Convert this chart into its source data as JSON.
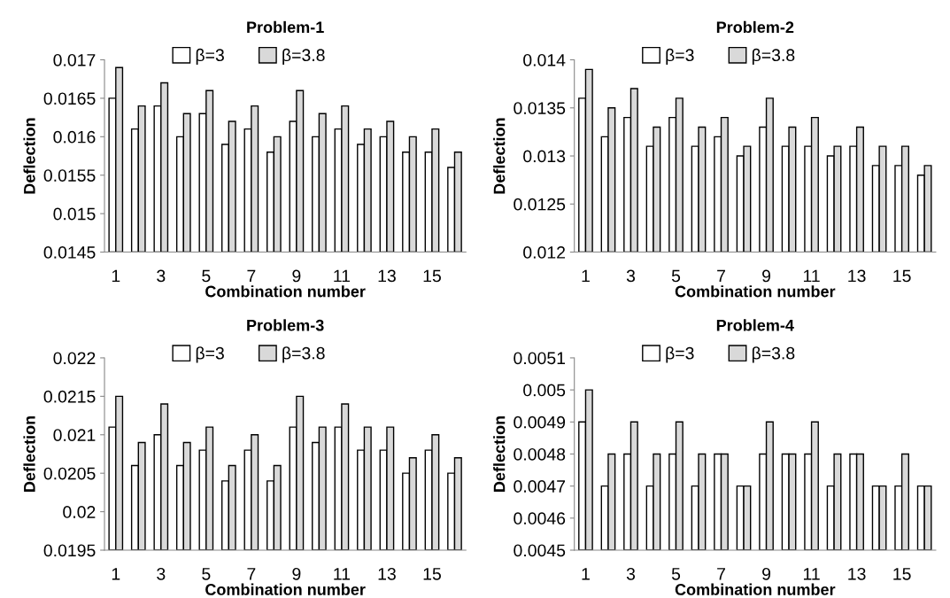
{
  "chart_data": [
    {
      "type": "bar",
      "title": "Problem-1",
      "xlabel": "Combination number",
      "ylabel": "Deflection",
      "categories": [
        "1",
        null,
        "3",
        null,
        "5",
        null,
        "7",
        null,
        "9",
        null,
        "11",
        null,
        "13",
        null,
        "15",
        null
      ],
      "ylim": [
        0.0145,
        0.017
      ],
      "yticks": [
        0.0145,
        0.015,
        0.0155,
        0.016,
        0.0165,
        0.017
      ],
      "legend": "top",
      "grid": false,
      "series": [
        {
          "name": "β=3",
          "color": "#ffffff",
          "values": [
            0.0165,
            0.0161,
            0.0164,
            0.016,
            0.0163,
            0.0159,
            0.0161,
            0.0158,
            0.0162,
            0.016,
            0.0161,
            0.0159,
            0.016,
            0.0158,
            0.0158,
            0.0156
          ]
        },
        {
          "name": "β=3.8",
          "color": "#d9d9d9",
          "values": [
            0.0169,
            0.0164,
            0.0167,
            0.0163,
            0.0166,
            0.0162,
            0.0164,
            0.016,
            0.0166,
            0.0163,
            0.0164,
            0.0161,
            0.0162,
            0.016,
            0.0161,
            0.0158
          ]
        }
      ]
    },
    {
      "type": "bar",
      "title": "Problem-2",
      "xlabel": "Combination number",
      "ylabel": "Deflection",
      "categories": [
        "1",
        null,
        "3",
        null,
        "5",
        null,
        "7",
        null,
        "9",
        null,
        "11",
        null,
        "13",
        null,
        "15",
        null
      ],
      "ylim": [
        0.012,
        0.014
      ],
      "yticks": [
        0.012,
        0.0125,
        0.013,
        0.0135,
        0.014
      ],
      "legend": "top",
      "grid": false,
      "series": [
        {
          "name": "β=3",
          "color": "#ffffff",
          "values": [
            0.0136,
            0.0132,
            0.0134,
            0.0131,
            0.0134,
            0.0131,
            0.0132,
            0.013,
            0.0133,
            0.0131,
            0.0131,
            0.013,
            0.0131,
            0.0129,
            0.0129,
            0.0128
          ]
        },
        {
          "name": "β=3.8",
          "color": "#d9d9d9",
          "values": [
            0.0139,
            0.0135,
            0.0137,
            0.0133,
            0.0136,
            0.0133,
            0.0134,
            0.0131,
            0.0136,
            0.0133,
            0.0134,
            0.0131,
            0.0133,
            0.0131,
            0.0131,
            0.0129
          ]
        }
      ]
    },
    {
      "type": "bar",
      "title": "Problem-3",
      "xlabel": "Combination number",
      "ylabel": "Deflection",
      "categories": [
        "1",
        null,
        "3",
        null,
        "5",
        null,
        "7",
        null,
        "9",
        null,
        "11",
        null,
        "13",
        null,
        "15",
        null
      ],
      "ylim": [
        0.0195,
        0.022
      ],
      "yticks": [
        0.0195,
        0.02,
        0.0205,
        0.021,
        0.0215,
        0.022
      ],
      "legend": "top",
      "grid": false,
      "series": [
        {
          "name": "β=3",
          "color": "#ffffff",
          "values": [
            0.0211,
            0.0206,
            0.021,
            0.0206,
            0.0208,
            0.0204,
            0.0208,
            0.0204,
            0.0211,
            0.0209,
            0.0211,
            0.0208,
            0.0208,
            0.0205,
            0.0208,
            0.0205
          ]
        },
        {
          "name": "β=3.8",
          "color": "#d9d9d9",
          "values": [
            0.0215,
            0.0209,
            0.0214,
            0.0209,
            0.0211,
            0.0206,
            0.021,
            0.0206,
            0.0215,
            0.0211,
            0.0214,
            0.0211,
            0.0211,
            0.0207,
            0.021,
            0.0207
          ]
        }
      ]
    },
    {
      "type": "bar",
      "title": "Problem-4",
      "xlabel": "Combination number",
      "ylabel": "Deflection",
      "categories": [
        "1",
        null,
        "3",
        null,
        "5",
        null,
        "7",
        null,
        "9",
        null,
        "11",
        null,
        "13",
        null,
        "15",
        null
      ],
      "ylim": [
        0.0045,
        0.0051
      ],
      "yticks": [
        0.0045,
        0.0046,
        0.0047,
        0.0048,
        0.0049,
        0.005,
        0.0051
      ],
      "legend": "top",
      "grid": false,
      "series": [
        {
          "name": "β=3",
          "color": "#ffffff",
          "values": [
            0.0049,
            0.0047,
            0.0048,
            0.0047,
            0.0048,
            0.0047,
            0.0048,
            0.0047,
            0.0048,
            0.0048,
            0.0048,
            0.0047,
            0.0048,
            0.0047,
            0.0047,
            0.0047
          ]
        },
        {
          "name": "β=3.8",
          "color": "#d9d9d9",
          "values": [
            0.005,
            0.0048,
            0.0049,
            0.0048,
            0.0049,
            0.0048,
            0.0048,
            0.0047,
            0.0049,
            0.0048,
            0.0049,
            0.0048,
            0.0048,
            0.0047,
            0.0048,
            0.0047
          ]
        }
      ]
    }
  ]
}
